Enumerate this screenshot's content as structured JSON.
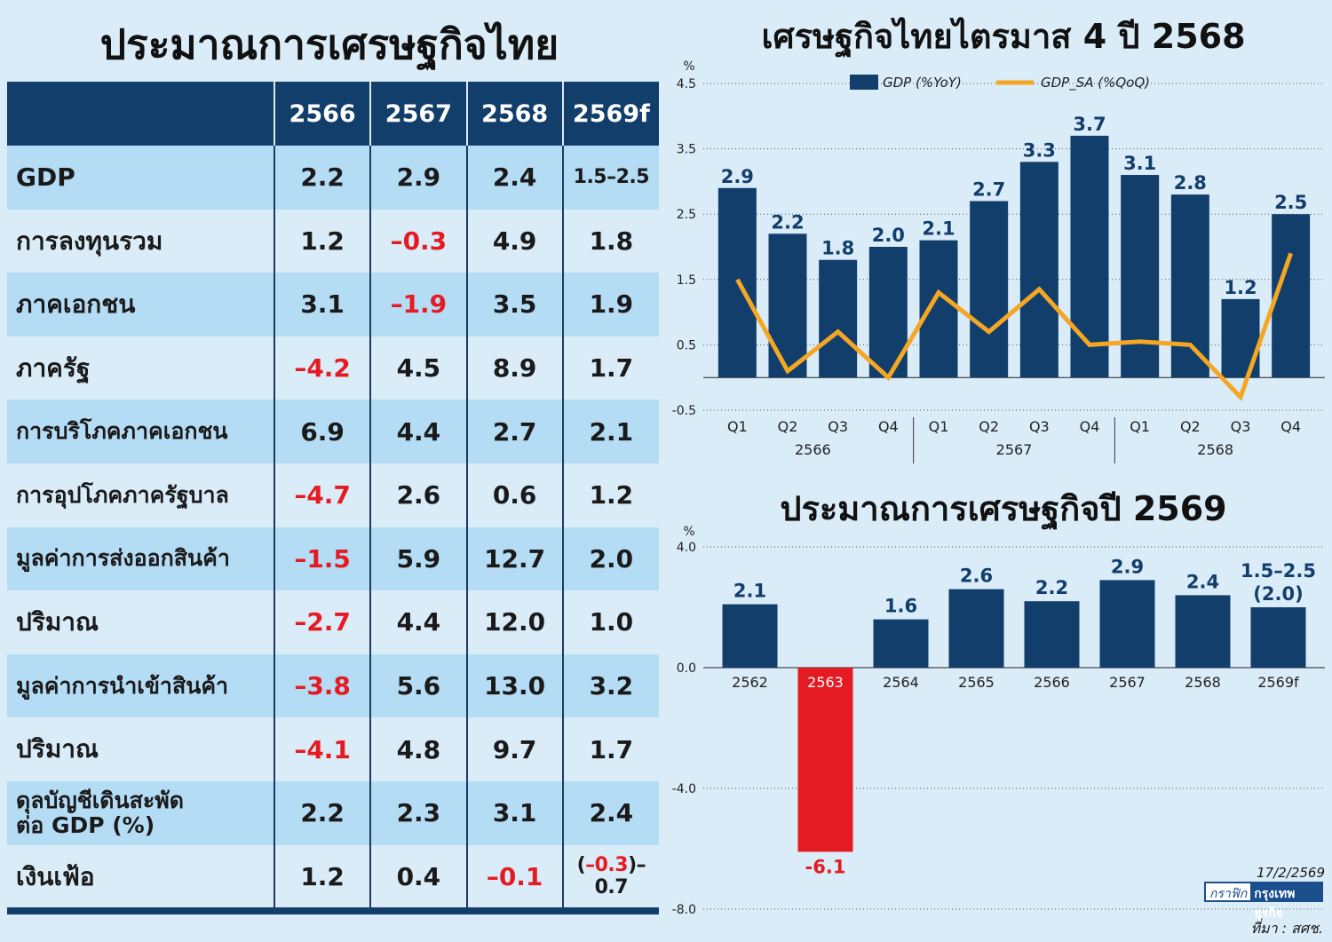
{
  "left_title": "ประมาณการเศรษฐกิจไทย",
  "table": {
    "headers": [
      "",
      "2566",
      "2567",
      "2568",
      "2569f"
    ],
    "rows": [
      {
        "label": "GDP",
        "values": [
          "2.2",
          "2.9",
          "2.4",
          "1.5–2.5"
        ]
      },
      {
        "label": "การลงทุนรวม",
        "values": [
          "1.2",
          "–0.3",
          "4.9",
          "1.8"
        ]
      },
      {
        "label": "ภาคเอกชน",
        "values": [
          "3.1",
          "–1.9",
          "3.5",
          "1.9"
        ]
      },
      {
        "label": "ภาครัฐ",
        "values": [
          "–4.2",
          "4.5",
          "8.9",
          "1.7"
        ]
      },
      {
        "label": "การบริโภคภาคเอกชน",
        "values": [
          "6.9",
          "4.4",
          "2.7",
          "2.1"
        ]
      },
      {
        "label": "การอุปโภคภาครัฐบาล",
        "values": [
          "–4.7",
          "2.6",
          "0.6",
          "1.2"
        ]
      },
      {
        "label": "มูลค่าการส่งออกสินค้า",
        "values": [
          "–1.5",
          "5.9",
          "12.7",
          "2.0"
        ]
      },
      {
        "label": "ปริมาณ",
        "values": [
          "–2.7",
          "4.4",
          "12.0",
          "1.0"
        ]
      },
      {
        "label": "มูลค่าการนำเข้าสินค้า",
        "values": [
          "–3.8",
          "5.6",
          "13.0",
          "3.2"
        ]
      },
      {
        "label": "ปริมาณ",
        "values": [
          "–4.1",
          "4.8",
          "9.7",
          "1.7"
        ]
      },
      {
        "label": "ดุลบัญชีเดินสะพัด",
        "label_line2": "ต่อ GDP (%)",
        "values": [
          "2.2",
          "2.3",
          "3.1",
          "2.4"
        ]
      },
      {
        "label": "เงินเฟ้อ",
        "values": [
          "1.2",
          "0.4",
          "–0.1",
          ""
        ],
        "last_open": "(",
        "last_neg": "–0.3",
        "last_rest": ")–0.7"
      }
    ],
    "negative_color": "#e51b24",
    "header_color": "#123e6c"
  },
  "chart_data": [
    {
      "type": "bar",
      "title": "เศรษฐกิจไทยไตรมาส 4 ปี 2568",
      "unit_label": "%",
      "categories": [
        "Q1",
        "Q2",
        "Q3",
        "Q4",
        "Q1",
        "Q2",
        "Q3",
        "Q4",
        "Q1",
        "Q2",
        "Q3",
        "Q4"
      ],
      "groups": [
        {
          "label": "2566",
          "from": 0,
          "to": 3
        },
        {
          "label": "2567",
          "from": 4,
          "to": 7
        },
        {
          "label": "2568",
          "from": 8,
          "to": 11
        }
      ],
      "series": [
        {
          "name": "GDP (%YoY)",
          "type": "bar",
          "color": "#123e6c",
          "values": [
            2.9,
            2.2,
            1.8,
            2.0,
            2.1,
            2.7,
            3.3,
            3.7,
            3.1,
            2.8,
            1.2,
            2.5
          ],
          "labels": [
            "2.9",
            "2.2",
            "1.8",
            "2.0",
            "2.1",
            "2.7",
            "3.3",
            "3.7",
            "3.1",
            "2.8",
            "1.2",
            "2.5"
          ]
        },
        {
          "name": "GDP_SA (%QoQ)",
          "type": "line",
          "color": "#f5a623",
          "values": [
            1.5,
            0.1,
            0.7,
            0.0,
            1.3,
            0.7,
            1.35,
            0.5,
            0.55,
            0.5,
            -0.3,
            1.9
          ]
        }
      ],
      "yticks": [
        4.5,
        3.5,
        2.5,
        1.5,
        0.5,
        -0.5
      ],
      "ytick_labels": [
        "4.5",
        "3.5",
        "2.5",
        "1.5",
        "0.5",
        "-0.5"
      ],
      "ylim": [
        -0.5,
        4.5
      ],
      "legend": "top",
      "grid": "dotted horizontal"
    },
    {
      "type": "bar",
      "title": "ประมาณการเศรษฐกิจปี 2569",
      "unit_label": "%",
      "categories": [
        "2562",
        "2563",
        "2564",
        "2565",
        "2566",
        "2567",
        "2568",
        "2569f"
      ],
      "values": [
        2.1,
        -6.1,
        1.6,
        2.6,
        2.2,
        2.9,
        2.4,
        2.0
      ],
      "labels": [
        "2.1",
        "-6.1",
        "1.6",
        "2.6",
        "2.2",
        "2.9",
        "2.4",
        "1.5–2.5"
      ],
      "sub_labels": [
        "",
        "",
        "",
        "",
        "",
        "",
        "",
        "(2.0)"
      ],
      "colors": [
        "#123e6c",
        "#e51b24",
        "#123e6c",
        "#123e6c",
        "#123e6c",
        "#123e6c",
        "#123e6c",
        "#123e6c"
      ],
      "yticks": [
        4.0,
        0.0,
        -4.0,
        -8.0
      ],
      "ytick_labels": [
        "4.0",
        "0.0",
        "-4.0",
        "-8.0"
      ],
      "ylim": [
        -8.0,
        4.0
      ],
      "grid": "dotted horizontal"
    }
  ],
  "footer": {
    "date": "17/2/2569",
    "credit_label": "กราฟิก",
    "credit_name": "กรุงเทพธุรกิจ",
    "source": "ที่มา : สศช."
  }
}
